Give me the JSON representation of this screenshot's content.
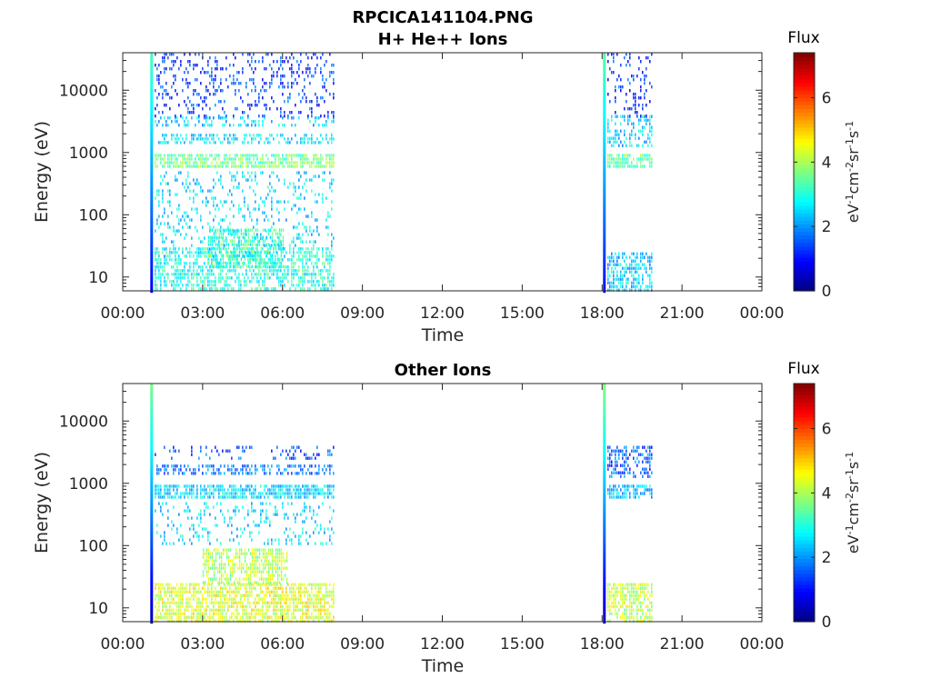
{
  "figure_title": "RPCICA141104.PNG",
  "chart_data": [
    {
      "type": "heatmap",
      "title": "H+ He++ Ions",
      "xlabel": "Time",
      "ylabel": "Energy (eV)",
      "x_ticks": [
        "00:00",
        "03:00",
        "06:00",
        "09:00",
        "12:00",
        "15:00",
        "18:00",
        "21:00",
        "00:00"
      ],
      "x_range_hours": [
        0,
        24
      ],
      "y_scale": "log",
      "y_ticks": [
        10,
        100,
        1000,
        10000
      ],
      "y_range": [
        6,
        40000
      ],
      "colorbar": {
        "label": "Flux",
        "unit": "eV-1cm-2sr-1s-1",
        "range": [
          0,
          7.4
        ],
        "ticks": [
          0,
          2,
          4,
          6
        ],
        "colormap": "jet"
      },
      "data_intervals_hours": [
        [
          1.05,
          7.95
        ],
        [
          18.05,
          19.9
        ]
      ],
      "features": [
        {
          "t": [
            1.0,
            1.15
          ],
          "e": [
            6,
            40000
          ],
          "flux": 1.2,
          "density": 1.0,
          "note": "vertical line"
        },
        {
          "t": [
            18.0,
            18.1
          ],
          "e": [
            6,
            40000
          ],
          "flux": 1.3,
          "density": 1.0,
          "note": "vertical line"
        },
        {
          "t": [
            1.2,
            7.95
          ],
          "e": [
            600,
            950
          ],
          "flux": 3.6,
          "density": 0.75
        },
        {
          "t": [
            1.2,
            7.95
          ],
          "e": [
            1400,
            2000
          ],
          "flux": 2.6,
          "density": 0.45
        },
        {
          "t": [
            1.2,
            7.95
          ],
          "e": [
            2600,
            3800
          ],
          "flux": 2.4,
          "density": 0.3
        },
        {
          "t": [
            1.2,
            7.95
          ],
          "e": [
            4000,
            40000
          ],
          "flux": 1.3,
          "density": 0.22
        },
        {
          "t": [
            1.2,
            7.95
          ],
          "e": [
            20,
            500
          ],
          "flux": 2.5,
          "density": 0.18
        },
        {
          "t": [
            1.2,
            7.95
          ],
          "e": [
            6,
            30
          ],
          "flux": 3.0,
          "density": 0.55
        },
        {
          "t": [
            3.2,
            6.0
          ],
          "e": [
            15,
            60
          ],
          "flux": 3.2,
          "density": 0.6
        },
        {
          "t": [
            18.2,
            19.9
          ],
          "e": [
            600,
            950
          ],
          "flux": 3.4,
          "density": 0.75
        },
        {
          "t": [
            18.2,
            19.9
          ],
          "e": [
            1300,
            4000
          ],
          "flux": 2.5,
          "density": 0.45
        },
        {
          "t": [
            18.2,
            19.9
          ],
          "e": [
            4000,
            40000
          ],
          "flux": 1.2,
          "density": 0.2
        },
        {
          "t": [
            18.2,
            19.9
          ],
          "e": [
            6,
            25
          ],
          "flux": 2.4,
          "density": 0.6
        }
      ]
    },
    {
      "type": "heatmap",
      "title": "Other Ions",
      "xlabel": "Time",
      "ylabel": "Energy (eV)",
      "x_ticks": [
        "00:00",
        "03:00",
        "06:00",
        "09:00",
        "12:00",
        "15:00",
        "18:00",
        "21:00",
        "00:00"
      ],
      "x_range_hours": [
        0,
        24
      ],
      "y_scale": "log",
      "y_ticks": [
        10,
        100,
        1000,
        10000
      ],
      "y_range": [
        6,
        40000
      ],
      "colorbar": {
        "label": "Flux",
        "unit": "eV-1cm-2sr-1s-1",
        "range": [
          0,
          7.4
        ],
        "ticks": [
          0,
          2,
          4,
          6
        ],
        "colormap": "jet"
      },
      "data_intervals_hours": [
        [
          1.05,
          7.95
        ],
        [
          18.05,
          19.9
        ]
      ],
      "features": [
        {
          "t": [
            1.0,
            1.15
          ],
          "e": [
            6,
            40000
          ],
          "flux": 0.7,
          "density": 1.0,
          "note": "vertical line"
        },
        {
          "t": [
            18.0,
            18.1
          ],
          "e": [
            6,
            40000
          ],
          "flux": 0.8,
          "density": 1.0,
          "note": "vertical line"
        },
        {
          "t": [
            1.2,
            7.95
          ],
          "e": [
            600,
            950
          ],
          "flux": 2.5,
          "density": 0.75
        },
        {
          "t": [
            1.2,
            7.95
          ],
          "e": [
            1400,
            2000
          ],
          "flux": 1.8,
          "density": 0.5
        },
        {
          "t": [
            1.2,
            7.95
          ],
          "e": [
            2500,
            4000
          ],
          "flux": 1.5,
          "density": 0.2
        },
        {
          "t": [
            1.2,
            7.95
          ],
          "e": [
            100,
            500
          ],
          "flux": 2.5,
          "density": 0.2
        },
        {
          "t": [
            3.0,
            6.2
          ],
          "e": [
            25,
            90
          ],
          "flux": 4.1,
          "density": 0.65
        },
        {
          "t": [
            1.2,
            7.95
          ],
          "e": [
            6,
            25
          ],
          "flux": 4.4,
          "density": 0.7
        },
        {
          "t": [
            18.2,
            19.9
          ],
          "e": [
            600,
            950
          ],
          "flux": 2.3,
          "density": 0.7
        },
        {
          "t": [
            18.2,
            19.9
          ],
          "e": [
            1300,
            4000
          ],
          "flux": 1.6,
          "density": 0.45
        },
        {
          "t": [
            18.2,
            19.9
          ],
          "e": [
            6,
            25
          ],
          "flux": 4.2,
          "density": 0.65
        }
      ]
    }
  ]
}
